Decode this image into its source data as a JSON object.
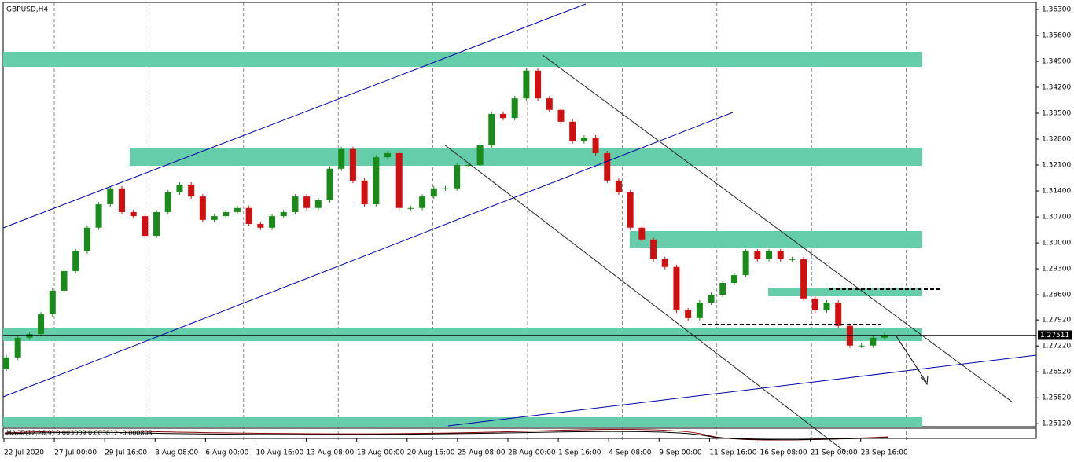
{
  "chart_data": {
    "type": "candlestick",
    "title": "GBPUSD,H4",
    "x_labels": [
      "22 Jul 2020",
      "27 Jul 00:00",
      "29 Jul 16:00",
      "3 Aug 08:00",
      "6 Aug 00:00",
      "10 Aug 16:00",
      "13 Aug 08:00",
      "18 Aug 00:00",
      "20 Aug 16:00",
      "25 Aug 08:00",
      "28 Aug 00:00",
      "1 Sep 16:00",
      "4 Sep 08:00",
      "9 Sep 00:00",
      "11 Sep 16:00",
      "16 Sep 08:00",
      "21 Sep 00:00",
      "23 Sep 16:00"
    ],
    "open": [
      1.266,
      1.2691,
      1.2744,
      1.2754,
      1.2807,
      1.2871,
      1.2924,
      1.2977,
      1.3041,
      1.3104,
      1.3147,
      1.3083,
      1.3072,
      1.3019,
      1.3083,
      1.3136,
      1.3157,
      1.3125,
      1.3062,
      1.3072,
      1.3083,
      1.3094,
      1.3051,
      1.3041,
      1.3072,
      1.3083,
      1.3125,
      1.3094,
      1.3115,
      1.32,
      1.3253,
      1.3168,
      1.3104,
      1.3231,
      1.3242,
      1.3094,
      1.3094,
      1.3125,
      1.3147,
      1.3147,
      1.321,
      1.321,
      1.3263,
      1.3348,
      1.3337,
      1.339,
      1.3465,
      1.339,
      1.3359,
      1.3327,
      1.3274,
      1.3284,
      1.3242,
      1.3168,
      1.3136,
      1.3041,
      1.3009,
      1.2956,
      1.2935,
      1.2818,
      1.2797,
      1.2839,
      1.286,
      1.2892,
      1.2913,
      1.2977,
      1.2956,
      1.2977,
      1.2956,
      1.2956,
      1.285,
      1.2818,
      1.2839,
      1.2776,
      1.2723,
      1.2723,
      1.2744
    ],
    "close": [
      1.2691,
      1.2744,
      1.2754,
      1.2807,
      1.2871,
      1.2924,
      1.2977,
      1.3041,
      1.3104,
      1.3147,
      1.3083,
      1.3072,
      1.3019,
      1.3083,
      1.3136,
      1.3157,
      1.3125,
      1.3062,
      1.3072,
      1.3083,
      1.3094,
      1.3051,
      1.3041,
      1.3072,
      1.3083,
      1.3125,
      1.3094,
      1.3115,
      1.32,
      1.3253,
      1.3168,
      1.3104,
      1.3231,
      1.3242,
      1.3094,
      1.3094,
      1.3125,
      1.3147,
      1.3147,
      1.321,
      1.321,
      1.3263,
      1.3348,
      1.3337,
      1.339,
      1.3465,
      1.339,
      1.3359,
      1.3327,
      1.3274,
      1.3284,
      1.3242,
      1.3168,
      1.3136,
      1.3041,
      1.3009,
      1.2956,
      1.2935,
      1.2818,
      1.2797,
      1.2839,
      1.286,
      1.2892,
      1.2913,
      1.2977,
      1.2956,
      1.2977,
      1.2956,
      1.2956,
      1.285,
      1.2818,
      1.2839,
      1.2776,
      1.2723,
      1.2723,
      1.2744,
      1.2751
    ],
    "up_color": "#1a8a1a",
    "down_color": "#d01010",
    "ylim": [
      1.2504,
      1.3649
    ],
    "yticks": [
      {
        "value": 1.363,
        "label": "1.36300"
      },
      {
        "value": 1.356,
        "label": "1.35600"
      },
      {
        "value": 1.349,
        "label": "1.34900"
      },
      {
        "value": 1.342,
        "label": "1.34200"
      },
      {
        "value": 1.335,
        "label": "1.33500"
      },
      {
        "value": 1.328,
        "label": "1.32800"
      },
      {
        "value": 1.321,
        "label": "1.32100"
      },
      {
        "value": 1.314,
        "label": "1.31400"
      },
      {
        "value": 1.307,
        "label": "1.30700"
      },
      {
        "value": 1.3,
        "label": "1.30000"
      },
      {
        "value": 1.293,
        "label": "1.29300"
      },
      {
        "value": 1.286,
        "label": "1.28600"
      },
      {
        "value": 1.2792,
        "label": "1.27920"
      },
      {
        "value": 1.2722,
        "label": "1.27220"
      },
      {
        "value": 1.2652,
        "label": "1.26520"
      },
      {
        "value": 1.2582,
        "label": "1.25820"
      },
      {
        "value": 1.2512,
        "label": "1.25120"
      }
    ],
    "last_price": {
      "value": 1.27511,
      "label": "1.27511"
    },
    "indicator_label": "MACD(12,26,9) 0.003009 0.003812 -0.000803"
  }
}
